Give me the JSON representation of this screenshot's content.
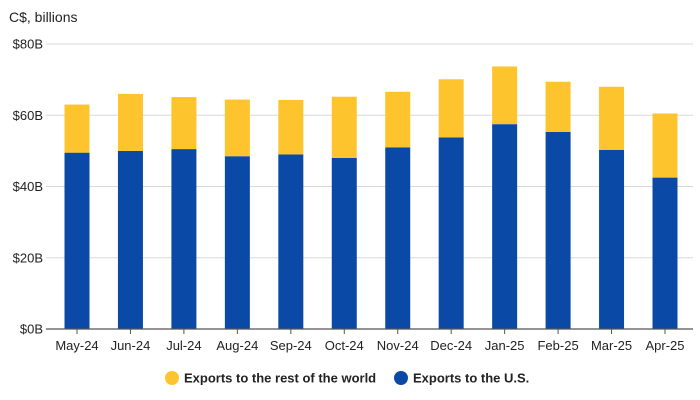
{
  "chart_data": {
    "type": "bar",
    "stacked": true,
    "unit_label": "C$, billions",
    "categories": [
      "May-24",
      "Jun-24",
      "Jul-24",
      "Aug-24",
      "Sep-24",
      "Oct-24",
      "Nov-24",
      "Dec-24",
      "Jan-25",
      "Feb-25",
      "Mar-25",
      "Apr-25"
    ],
    "series": [
      {
        "name": "Exports to the U.S.",
        "color": "#0b49a6",
        "values": [
          49.5,
          50.0,
          50.5,
          48.5,
          49.0,
          48.0,
          51.0,
          53.8,
          57.5,
          55.3,
          50.3,
          42.5
        ]
      },
      {
        "name": "Exports to the rest of the world",
        "color": "#fdc42d",
        "values": [
          13.5,
          16.0,
          14.6,
          15.9,
          15.3,
          17.2,
          15.6,
          16.3,
          16.2,
          14.1,
          17.7,
          18.0
        ]
      }
    ],
    "ylim": [
      0,
      80
    ],
    "yticks": [
      0,
      20,
      40,
      60,
      80
    ],
    "ytick_labels": [
      "$0B",
      "$20B",
      "$40B",
      "$60B",
      "$80B"
    ],
    "grid": true,
    "legend_position": "bottom-center",
    "legend_order": [
      "Exports to the rest of the world",
      "Exports to the U.S."
    ]
  }
}
